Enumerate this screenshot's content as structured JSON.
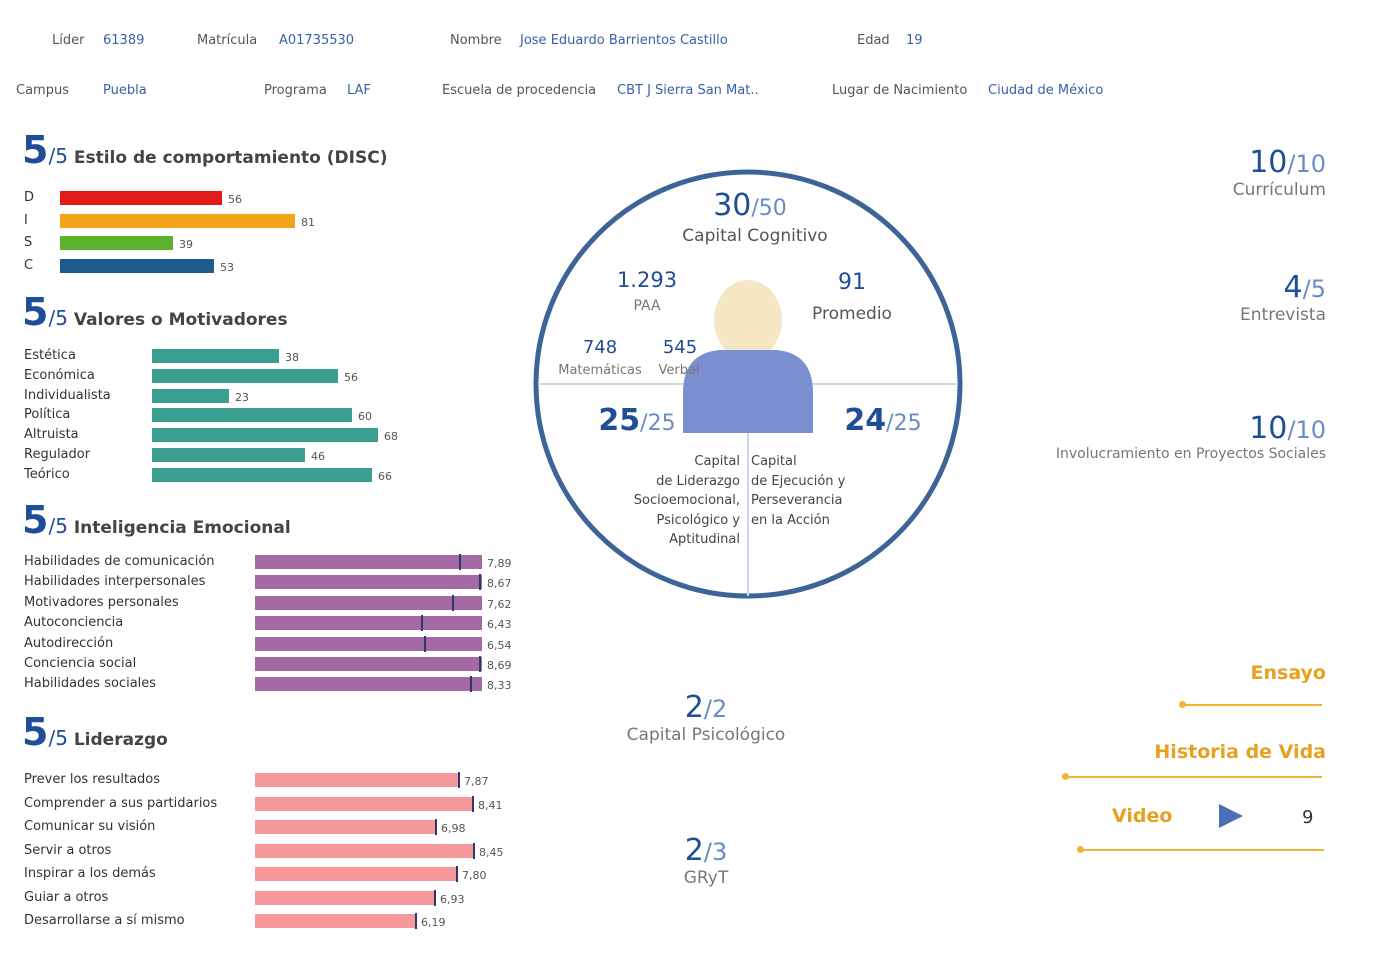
{
  "header": {
    "lider_label": "Líder",
    "lider_value": "61389",
    "matricula_label": "Matrícula",
    "matricula_value": "A01735530",
    "nombre_label": "Nombre",
    "nombre_value": "Jose Eduardo Barrientos Castillo",
    "edad_label": "Edad",
    "edad_value": "19",
    "campus_label": "Campus",
    "campus_value": "Puebla",
    "programa_label": "Programa",
    "programa_value": "LAF",
    "escuela_label": "Escuela de procedencia",
    "escuela_value": "CBT J Sierra San Mat..",
    "lugar_label": "Lugar de Nacimiento",
    "lugar_value": "Ciudad de México"
  },
  "disc": {
    "score": "5",
    "denom": "/5",
    "title": "Estilo de comportamiento (DISC)",
    "max": 100,
    "items": [
      {
        "label": "D",
        "value": 56,
        "text": "56",
        "color": "#e31b1b"
      },
      {
        "label": "I",
        "value": 81,
        "text": "81",
        "color": "#f5a21b"
      },
      {
        "label": "S",
        "value": 39,
        "text": "39",
        "color": "#5db22d"
      },
      {
        "label": "C",
        "value": 53,
        "text": "53",
        "color": "#1e5b8a"
      }
    ]
  },
  "valores": {
    "score": "5",
    "denom": "/5",
    "title": "Valores o Motivadores",
    "max": 100,
    "color": "#3a9e90",
    "items": [
      {
        "label": "Estética",
        "value": 38,
        "text": "38"
      },
      {
        "label": "Económica",
        "value": 56,
        "text": "56"
      },
      {
        "label": "Individualista",
        "value": 23,
        "text": "23"
      },
      {
        "label": "Política",
        "value": 60,
        "text": "60"
      },
      {
        "label": "Altruista",
        "value": 68,
        "text": "68"
      },
      {
        "label": "Regulador",
        "value": 46,
        "text": "46"
      },
      {
        "label": "Teórico",
        "value": 66,
        "text": "66"
      }
    ]
  },
  "emocional": {
    "score": "5",
    "denom": "/5",
    "title": "Inteligencia Emocional",
    "max": 10,
    "color": "#a56aa3",
    "bar_value": 8.8,
    "items": [
      {
        "label": "Habilidades de comunicación",
        "value": 7.89,
        "text": "7,89"
      },
      {
        "label": "Habilidades interpersonales",
        "value": 8.67,
        "text": "8,67"
      },
      {
        "label": "Motivadores personales",
        "value": 7.62,
        "text": "7,62"
      },
      {
        "label": "Autoconciencia",
        "value": 6.43,
        "text": "6,43"
      },
      {
        "label": "Autodirección",
        "value": 6.54,
        "text": "6,54"
      },
      {
        "label": "Conciencia social",
        "value": 8.69,
        "text": "8,69"
      },
      {
        "label": "Habilidades sociales",
        "value": 8.33,
        "text": "8,33"
      }
    ]
  },
  "liderazgo": {
    "score": "5",
    "denom": "/5",
    "title": "Liderazgo",
    "max": 10,
    "color": "#f7999a",
    "items": [
      {
        "label": "Prever los resultados",
        "value": 7.87,
        "text": "7,87"
      },
      {
        "label": "Comprender a sus partidarios",
        "value": 8.41,
        "text": "8,41"
      },
      {
        "label": "Comunicar su visión",
        "value": 6.98,
        "text": "6,98"
      },
      {
        "label": "Servir a otros",
        "value": 8.45,
        "text": "8,45"
      },
      {
        "label": "Inspirar a los demás",
        "value": 7.8,
        "text": "7,80"
      },
      {
        "label": "Guiar a otros",
        "value": 6.93,
        "text": "6,93"
      },
      {
        "label": "Desarrollarse a sí mismo",
        "value": 6.19,
        "text": "6,19"
      }
    ]
  },
  "circle": {
    "cognitivo_score": "30",
    "cognitivo_denom": "/50",
    "cognitivo_label": "Capital Cognitivo",
    "paa_value": "1.293",
    "paa_label": "PAA",
    "promedio_value": "91",
    "promedio_label": "Promedio",
    "mat_value": "748",
    "mat_label": "Matemáticas",
    "verbal_value": "545",
    "verbal_label": "Verbal",
    "liderazgo_score": "25",
    "liderazgo_denom": "/25",
    "liderazgo_lines": [
      "Capital",
      "de Liderazgo",
      "Socioemocional,",
      "Psicológico y",
      "Aptitudinal"
    ],
    "ejecucion_score": "24",
    "ejecucion_denom": "/25",
    "ejecucion_lines": [
      "Capital",
      "de Ejecución y",
      "Perseverancia",
      "en la Acción"
    ]
  },
  "right_scores": {
    "curriculum": {
      "n": "10",
      "d": "/10",
      "label": "Currículum"
    },
    "entrevista": {
      "n": "4",
      "d": "/5",
      "label": "Entrevista"
    },
    "proyectos": {
      "n": "10",
      "d": "/10",
      "label": "Involucramiento en Proyectos Sociales"
    }
  },
  "mid_scores": {
    "psicologico": {
      "n": "2",
      "d": "/2",
      "label": "Capital Psicológico"
    },
    "gryt": {
      "n": "2",
      "d": "/3",
      "label": "GRyT"
    }
  },
  "links": {
    "ensayo": "Ensayo",
    "historia": "Historia de Vida",
    "video": "Video",
    "video_count": "9"
  },
  "colors": {
    "accent": "#1f4e96",
    "orange": "#e8a020",
    "circle": "#3c6496"
  }
}
